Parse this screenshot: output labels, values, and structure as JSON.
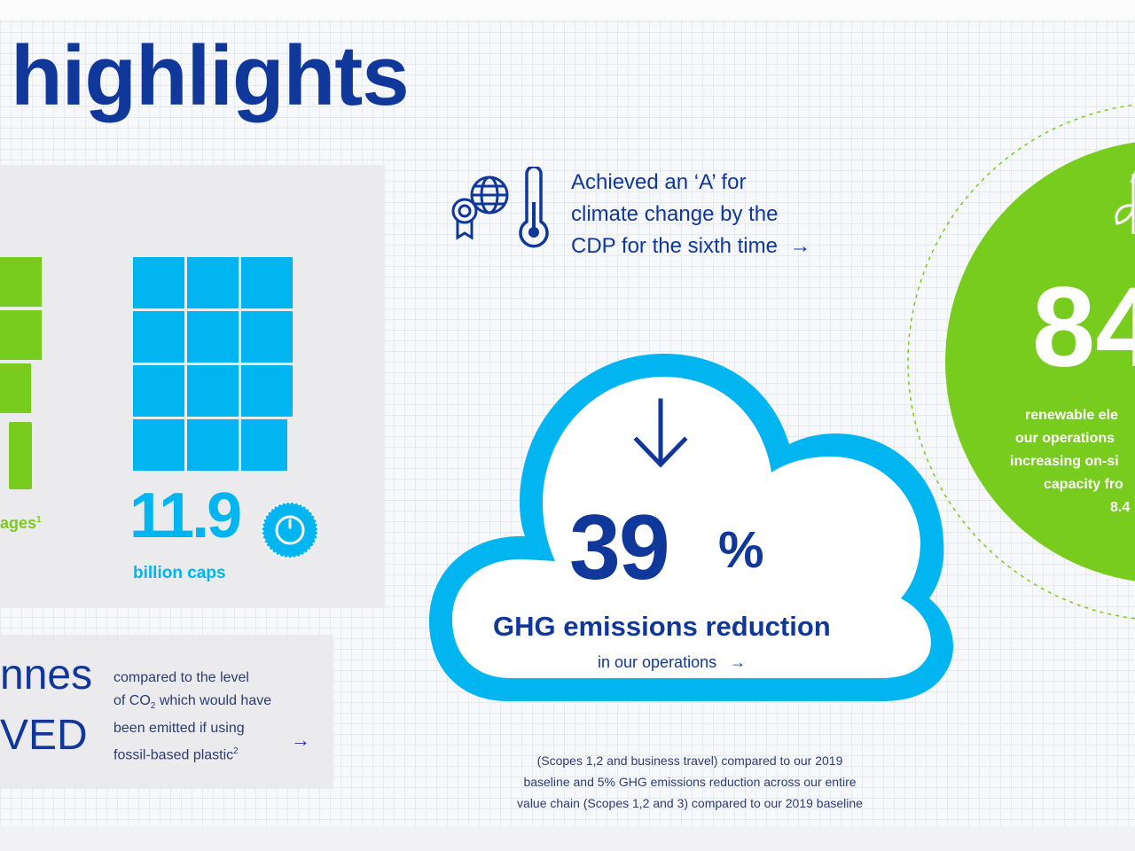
{
  "title": "highlights",
  "packaging": {
    "label_fragment": "ages",
    "label_footnote": "1",
    "caps_value": "11.9",
    "caps_unit": "billion caps"
  },
  "co2": {
    "line1_fragment": "nnes",
    "line2_fragment": "VED",
    "desc": [
      "compared to the level",
      "of CO",
      "which would have",
      "been emitted if using",
      "fossil-based plastic"
    ],
    "desc_sub": "2",
    "desc_footnote": "2",
    "arrow": "→"
  },
  "cdp": {
    "lines": [
      "Achieved an ‘A’ for",
      "climate change by the",
      "CDP for the sixth time"
    ],
    "arrow": "→",
    "icons": [
      "globe-certificate-icon",
      "thermometer-icon"
    ]
  },
  "ghg": {
    "value": "39",
    "unit": "%",
    "label": "GHG emissions reduction",
    "sub": "in our operations",
    "arrow": "→",
    "note": [
      "(Scopes 1,2 and business travel) compared to our 2019",
      "baseline and 5% GHG emissions reduction across our entire",
      "value chain (Scopes 1,2 and 3) compared to our 2019 baseline"
    ],
    "icon": "down-arrow-icon"
  },
  "renewable": {
    "value_fragment": "84",
    "lines": [
      "renewable ele",
      "our operations",
      "increasing on-si",
      "capacity fro",
      "8.4"
    ],
    "icon": "leaf-sprout-icon"
  },
  "colors": {
    "navy": "#10379a",
    "cyan": "#00b5f0",
    "green": "#77cc1d"
  }
}
